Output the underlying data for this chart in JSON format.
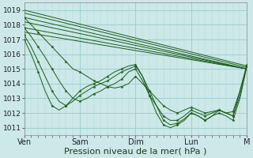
{
  "bg_color": "#cce8e8",
  "plot_bg_color": "#cce8e8",
  "grid_color_major": "#99cccc",
  "grid_color_minor": "#b3d9d9",
  "line_color": "#1a5c1a",
  "marker_color": "#1a5c1a",
  "ylim": [
    1010.5,
    1019.5
  ],
  "yticks": [
    1011,
    1012,
    1013,
    1014,
    1015,
    1016,
    1017,
    1018,
    1019
  ],
  "xlabel": "Pression niveau de la mer( hPa )",
  "xlabel_fontsize": 8,
  "xtick_labels": [
    "Ven",
    "Sam",
    "Dim",
    "Lun",
    "M"
  ],
  "xtick_positions": [
    0,
    24,
    48,
    72,
    96
  ],
  "xlim": [
    0,
    96
  ],
  "straight_lines": [
    {
      "x": [
        0,
        96
      ],
      "y": [
        1019.0,
        1015.2
      ]
    },
    {
      "x": [
        0,
        96
      ],
      "y": [
        1018.8,
        1015.1
      ]
    },
    {
      "x": [
        0,
        96
      ],
      "y": [
        1018.5,
        1015.0
      ]
    },
    {
      "x": [
        0,
        96
      ],
      "y": [
        1018.2,
        1015.0
      ]
    },
    {
      "x": [
        0,
        96
      ],
      "y": [
        1017.8,
        1015.0
      ]
    },
    {
      "x": [
        0,
        96
      ],
      "y": [
        1017.5,
        1015.0
      ]
    }
  ],
  "wavy_lines": [
    {
      "x": [
        0,
        3,
        6,
        9,
        12,
        15,
        18,
        21,
        24,
        27,
        30,
        33,
        36,
        39,
        42,
        45,
        48,
        51,
        54,
        57,
        60,
        63,
        66,
        69,
        72,
        75,
        78,
        81,
        84,
        87,
        90,
        93,
        96
      ],
      "y": [
        1018.5,
        1018.0,
        1017.5,
        1017.0,
        1016.5,
        1016.0,
        1015.5,
        1015.0,
        1014.8,
        1014.5,
        1014.2,
        1014.0,
        1013.8,
        1013.7,
        1013.8,
        1014.0,
        1014.5,
        1014.0,
        1013.5,
        1013.0,
        1012.5,
        1012.2,
        1012.0,
        1012.2,
        1012.4,
        1012.2,
        1012.0,
        1012.1,
        1012.2,
        1012.0,
        1012.1,
        1013.5,
        1015.2
      ]
    },
    {
      "x": [
        0,
        3,
        6,
        9,
        12,
        15,
        18,
        21,
        24,
        27,
        30,
        33,
        36,
        39,
        42,
        45,
        48,
        51,
        54,
        57,
        60,
        63,
        66,
        69,
        72,
        75,
        78,
        81,
        84,
        87,
        90,
        93,
        96
      ],
      "y": [
        1017.8,
        1017.2,
        1016.5,
        1015.8,
        1015.0,
        1014.2,
        1013.5,
        1013.0,
        1012.8,
        1013.0,
        1013.3,
        1013.5,
        1013.8,
        1014.0,
        1014.3,
        1014.8,
        1015.0,
        1014.2,
        1013.2,
        1012.5,
        1011.8,
        1011.5,
        1011.5,
        1011.8,
        1012.2,
        1012.0,
        1011.8,
        1012.0,
        1012.2,
        1012.0,
        1011.8,
        1013.2,
        1015.2
      ]
    },
    {
      "x": [
        0,
        3,
        6,
        9,
        12,
        15,
        18,
        21,
        24,
        27,
        30,
        33,
        36,
        39,
        42,
        45,
        48,
        51,
        54,
        57,
        60,
        63,
        66,
        69,
        72,
        75,
        78,
        81,
        84,
        87,
        90,
        93,
        96
      ],
      "y": [
        1017.3,
        1016.5,
        1015.5,
        1014.5,
        1013.5,
        1012.8,
        1012.5,
        1012.8,
        1013.2,
        1013.5,
        1013.8,
        1014.0,
        1014.2,
        1014.5,
        1014.8,
        1015.0,
        1015.2,
        1014.5,
        1013.5,
        1012.5,
        1011.5,
        1011.2,
        1011.3,
        1011.6,
        1012.0,
        1011.8,
        1011.5,
        1011.8,
        1012.0,
        1011.8,
        1011.5,
        1013.0,
        1015.2
      ]
    },
    {
      "x": [
        0,
        3,
        6,
        9,
        12,
        15,
        18,
        21,
        24,
        27,
        30,
        33,
        36,
        39,
        42,
        45,
        48,
        51,
        54,
        57,
        60,
        63,
        66,
        69,
        72,
        75,
        78,
        81,
        84,
        87,
        90,
        93,
        96
      ],
      "y": [
        1017.0,
        1016.0,
        1014.8,
        1013.5,
        1012.5,
        1012.2,
        1012.5,
        1013.0,
        1013.5,
        1013.8,
        1014.0,
        1014.2,
        1014.5,
        1014.8,
        1015.0,
        1015.2,
        1015.3,
        1014.5,
        1013.2,
        1012.0,
        1011.2,
        1011.0,
        1011.2,
        1011.5,
        1012.0,
        1011.8,
        1011.5,
        1011.8,
        1012.2,
        1012.0,
        1011.8,
        1013.5,
        1015.3
      ]
    }
  ]
}
